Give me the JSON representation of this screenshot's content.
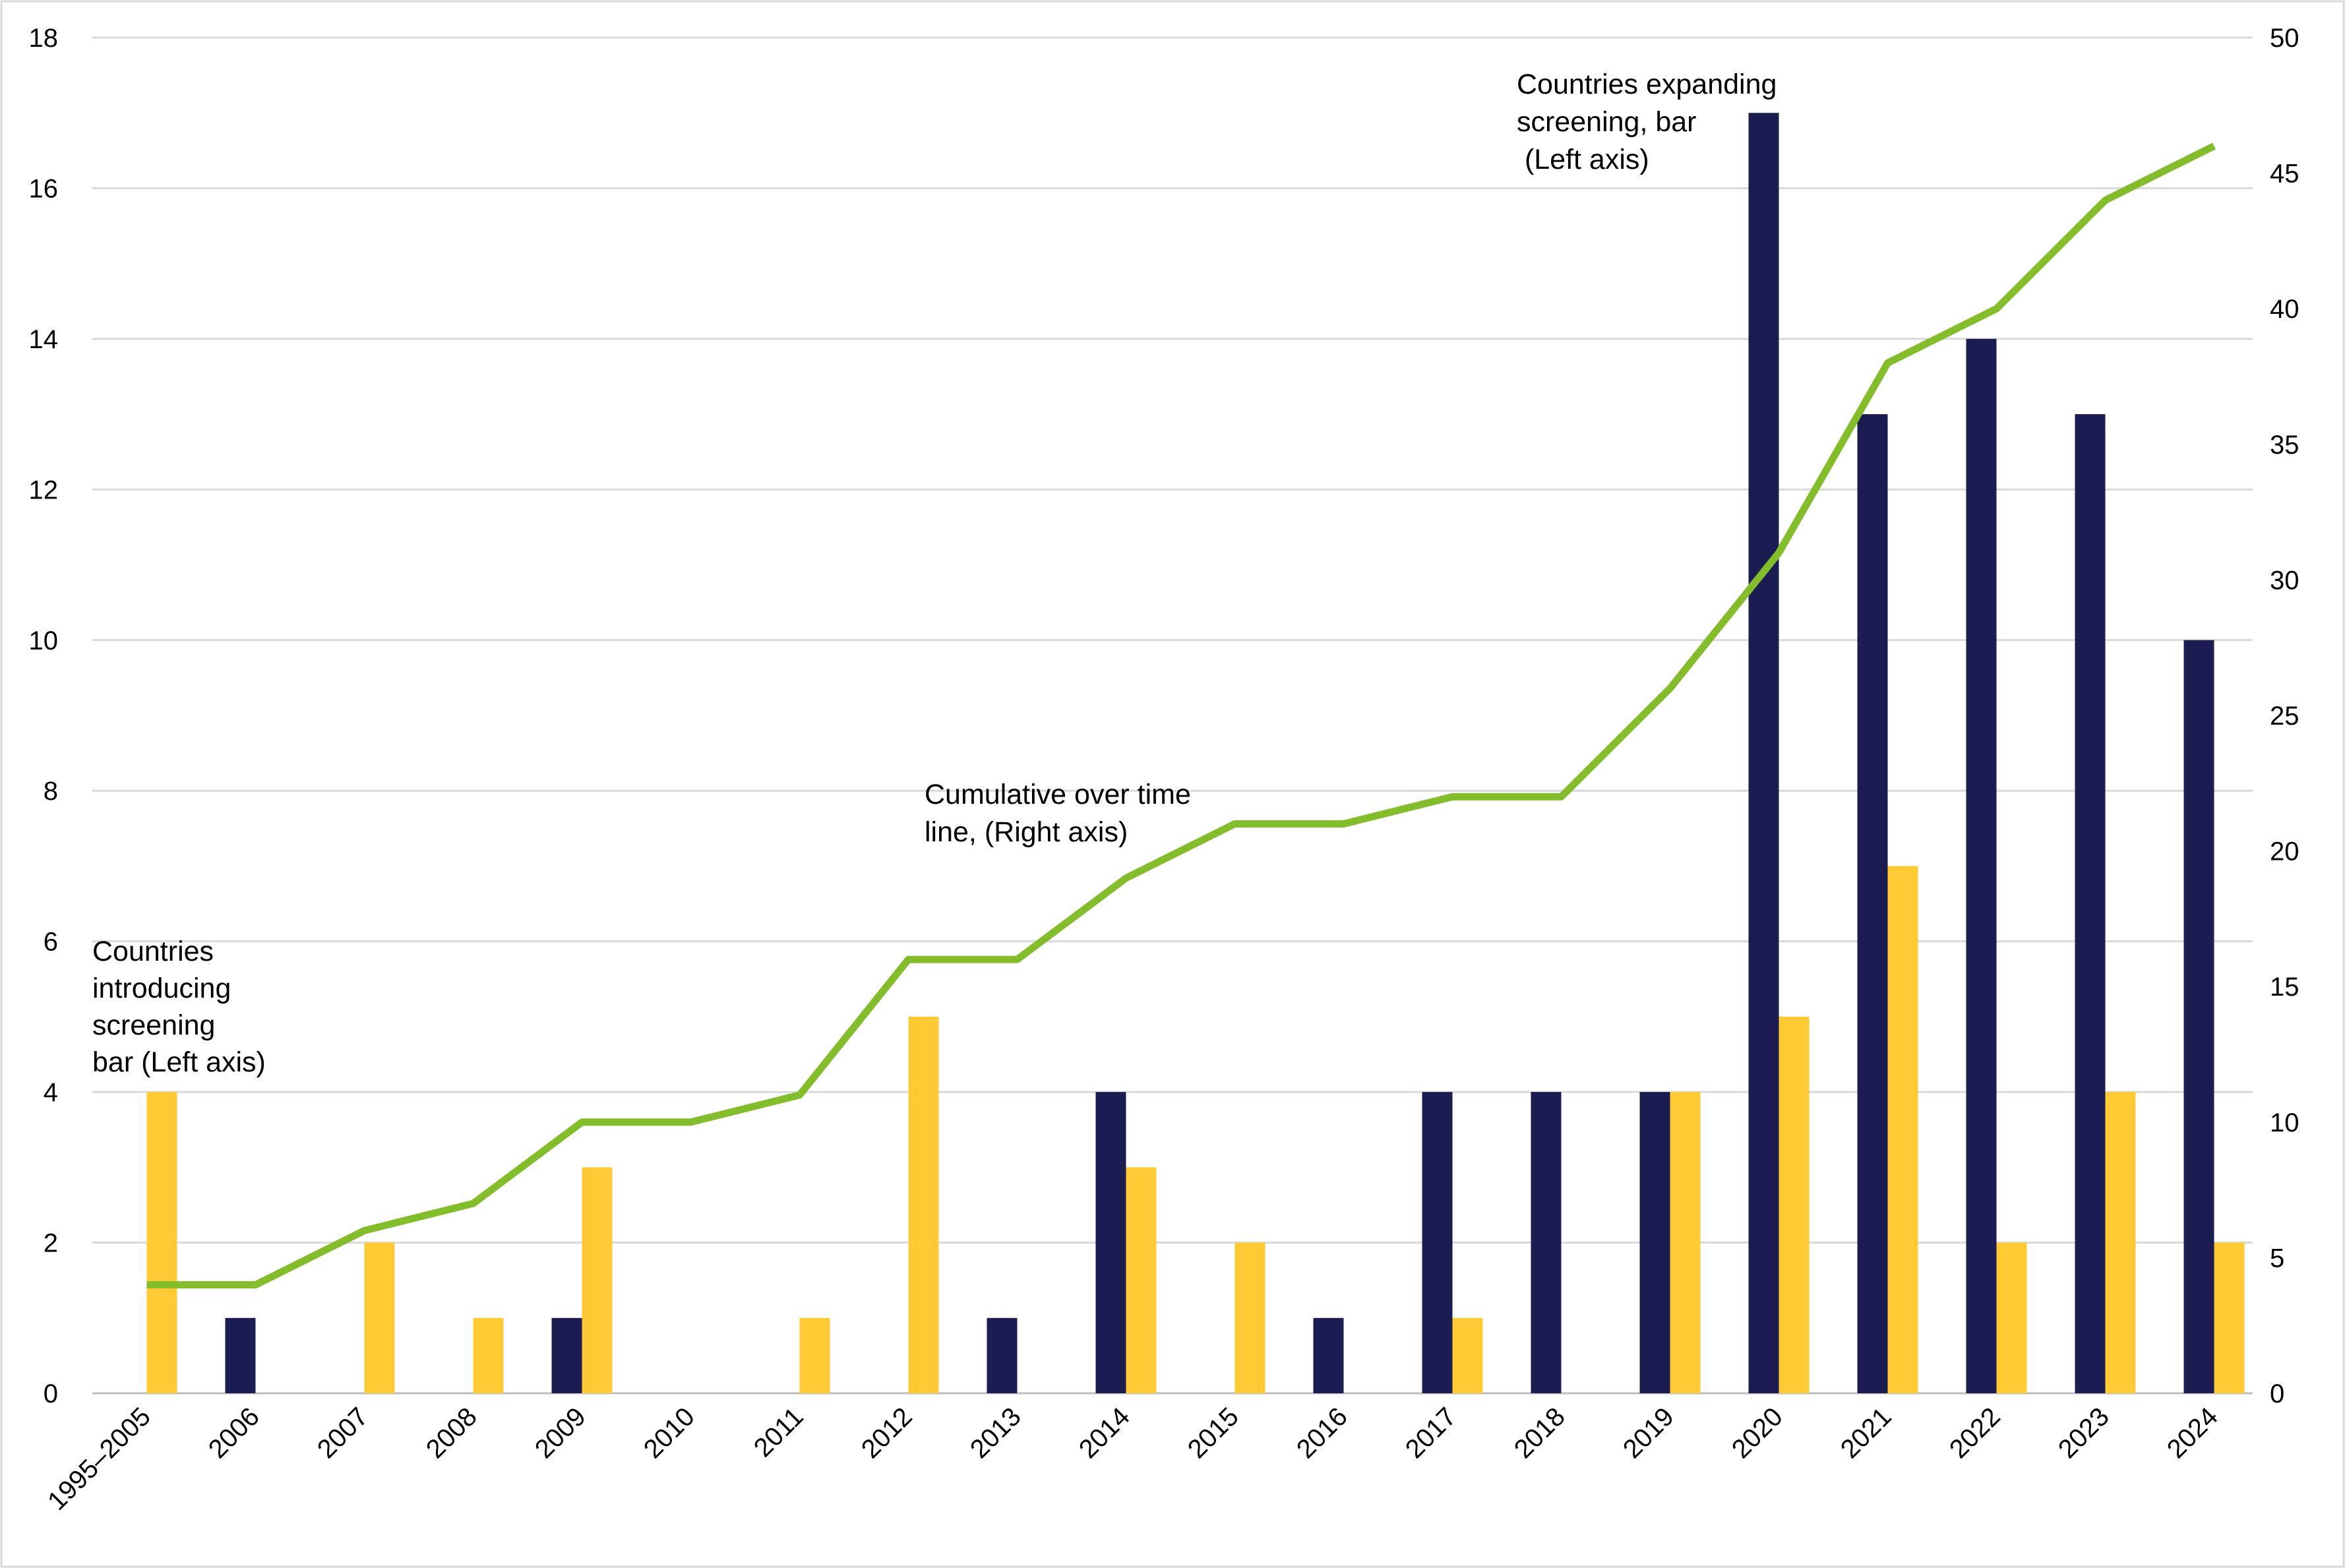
{
  "chart_data": {
    "type": "bar",
    "categories": [
      "1995–2005",
      "2006",
      "2007",
      "2008",
      "2009",
      "2010",
      "2011",
      "2012",
      "2013",
      "2014",
      "2015",
      "2016",
      "2017",
      "2018",
      "2019",
      "2020",
      "2021",
      "2022",
      "2023",
      "2024"
    ],
    "series": [
      {
        "type": "bar",
        "axis": "left",
        "color": "#1b1c52",
        "values": [
          0,
          1,
          0,
          0,
          1,
          0,
          0,
          0,
          1,
          4,
          0,
          1,
          4,
          4,
          4,
          17,
          13,
          14,
          13,
          10
        ]
      },
      {
        "type": "bar",
        "axis": "left",
        "color": "#ffca33",
        "values": [
          4,
          0,
          2,
          1,
          3,
          0,
          1,
          5,
          0,
          3,
          2,
          0,
          1,
          0,
          4,
          5,
          7,
          2,
          4,
          2
        ]
      },
      {
        "type": "line",
        "axis": "right",
        "color": "#84bd2b",
        "values": [
          4,
          4,
          6,
          7,
          10,
          10,
          11,
          16,
          16,
          19,
          21,
          21,
          22,
          22,
          26,
          31,
          38,
          40,
          44,
          46
        ]
      }
    ],
    "left_axis": {
      "range": [
        0,
        18
      ],
      "ticks": [
        "0",
        "2",
        "4",
        "6",
        "8",
        "10",
        "12",
        "14",
        "16",
        "18"
      ]
    },
    "right_axis": {
      "range": [
        0,
        50
      ],
      "ticks": [
        "0",
        "5",
        "10",
        "15",
        "20",
        "25",
        "30",
        "35",
        "40",
        "45",
        "50"
      ]
    },
    "grid": true,
    "annotations": [
      {
        "target": "bar-yellow",
        "lines": [
          "Countries",
          "introducing",
          "screening",
          "bar (Left axis)"
        ]
      },
      {
        "target": "line",
        "lines": [
          "Cumulative over time",
          "line, (Right axis)"
        ]
      },
      {
        "target": "bar-navy",
        "lines": [
          "Countries expanding",
          "screening, bar",
          " (Left axis)"
        ]
      }
    ]
  }
}
